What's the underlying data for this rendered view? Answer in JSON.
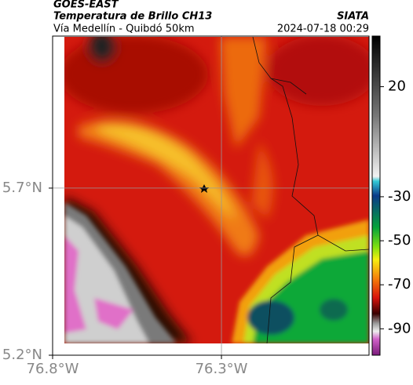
{
  "header": {
    "agency": "GOES-EAST",
    "title": "Temperatura de Brillo CH13",
    "subtitle": "Vía Medellín - Quibdó 50km",
    "source": "SIATA",
    "timestamp": "2024-07-18 00:29"
  },
  "chart_data": {
    "type": "map",
    "xlim": [
      -76.8,
      -75.863
    ],
    "xticks": [
      {
        "value": -76.8,
        "label": "76.8°W"
      },
      {
        "value": -76.3,
        "label": "76.3°W"
      }
    ],
    "ylim": [
      5.2,
      6.155
    ],
    "yticks": [
      {
        "value": 5.2,
        "label": "5.2°N"
      },
      {
        "value": 5.7,
        "label": "5.7°N"
      }
    ],
    "grid": true,
    "colorbar": {
      "lim": [
        -102,
        43
      ],
      "ticks": [
        20,
        -30,
        -50,
        -70,
        -90
      ]
    }
  }
}
